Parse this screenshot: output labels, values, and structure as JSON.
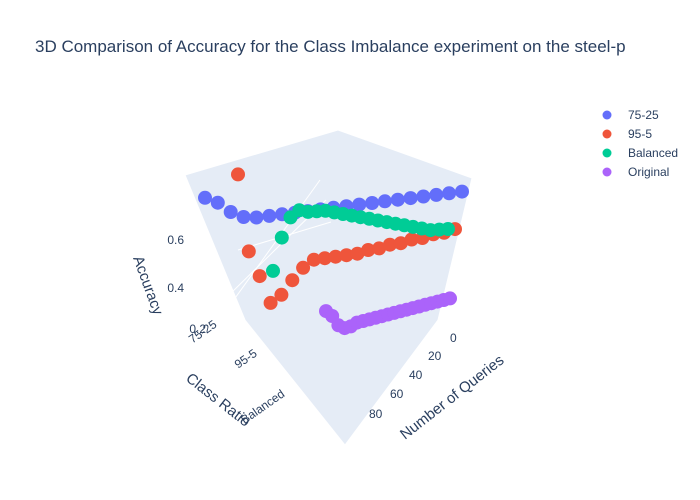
{
  "chart_data": {
    "type": "scatter3d",
    "title": "3D Comparison of Accuracy for the Class Imbalance experiment on the steel-p",
    "x_axis": {
      "label": "Number of Queries",
      "ticks": [
        "0",
        "20",
        "40",
        "60",
        "80"
      ],
      "range": [
        0,
        100
      ]
    },
    "y_axis": {
      "label": "Class Ratio",
      "ticks": [
        "75-25",
        "95-5",
        "Balanced"
      ]
    },
    "z_axis": {
      "label": "Accuracy",
      "ticks": [
        "0.2",
        "0.4",
        "0.6"
      ],
      "range": [
        0.2,
        0.75
      ]
    },
    "legend_position": "top-right",
    "series": [
      {
        "name": "75-25",
        "color": "#636efa",
        "class": "75-25",
        "x": [
          0,
          5,
          10,
          15,
          20,
          25,
          30,
          35,
          40,
          45,
          50,
          55,
          60,
          65,
          70,
          75,
          80,
          85,
          90,
          95,
          100
        ],
        "z": [
          0.76,
          0.72,
          0.66,
          0.62,
          0.6,
          0.59,
          0.58,
          0.57,
          0.56,
          0.55,
          0.54,
          0.53,
          0.52,
          0.51,
          0.5,
          0.49,
          0.48,
          0.47,
          0.46,
          0.45,
          0.44
        ]
      },
      {
        "name": "95-5",
        "color": "#ef553b",
        "class": "95-5",
        "x": [
          0,
          5,
          10,
          15,
          20,
          25,
          30,
          35,
          40,
          45,
          50,
          55,
          60,
          65,
          70,
          75,
          80,
          85,
          90,
          95,
          100
        ],
        "z": [
          0.95,
          0.58,
          0.45,
          0.31,
          0.33,
          0.38,
          0.42,
          0.44,
          0.43,
          0.42,
          0.41,
          0.4,
          0.4,
          0.39,
          0.39,
          0.38,
          0.38,
          0.37,
          0.37,
          0.36,
          0.36
        ]
      },
      {
        "name": "Balanced",
        "color": "#00cc96",
        "class": "Balanced",
        "x": [
          0,
          5,
          10,
          15,
          20,
          25,
          30,
          35,
          40,
          45,
          50,
          55,
          60,
          65,
          70,
          75,
          80,
          85,
          90,
          95,
          100
        ],
        "z": [
          0.48,
          0.62,
          0.7,
          0.72,
          0.7,
          0.69,
          0.68,
          0.66,
          0.64,
          0.62,
          0.6,
          0.58,
          0.56,
          0.54,
          0.52,
          0.5,
          0.48,
          0.46,
          0.44,
          0.43,
          0.42
        ]
      },
      {
        "name": "Original",
        "color": "#ab63fa",
        "class": "Original",
        "x": [
          0,
          5,
          10,
          15,
          20,
          25,
          30,
          35,
          40,
          45,
          50,
          55,
          60,
          65,
          70,
          75,
          80,
          85,
          90,
          95,
          100
        ],
        "z": [
          0.58,
          0.54,
          0.48,
          0.45,
          0.44,
          0.44,
          0.43,
          0.42,
          0.41,
          0.4,
          0.39,
          0.38,
          0.37,
          0.36,
          0.35,
          0.34,
          0.33,
          0.32,
          0.31,
          0.3,
          0.29
        ]
      }
    ]
  }
}
